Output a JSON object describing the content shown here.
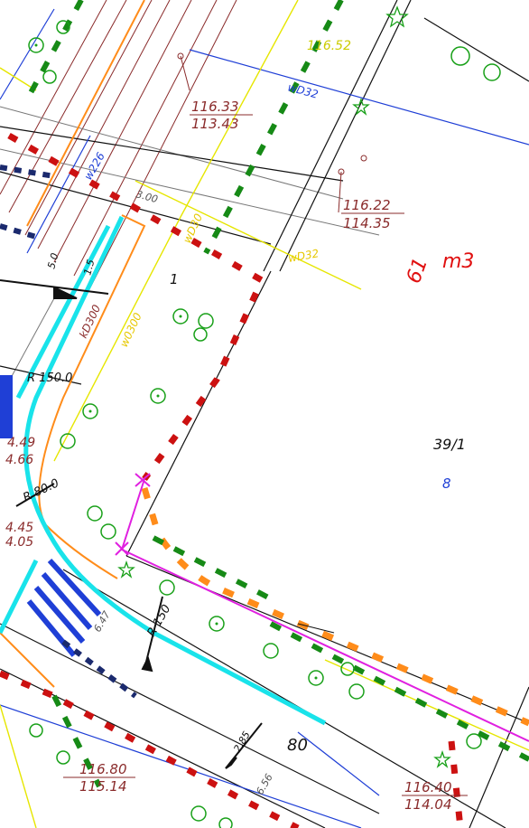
{
  "map": {
    "elevation_labels": [
      {
        "top": "116.33",
        "bottom": "113.43"
      },
      {
        "top": "116.22",
        "bottom": "114.35"
      },
      {
        "top": "116.80",
        "bottom": "115.14"
      },
      {
        "top": "116.40",
        "bottom": "114.04"
      }
    ],
    "parcel_labels": {
      "main": "39/1",
      "sub": "8",
      "small": "1"
    },
    "red_annotation": {
      "a": "61",
      "b": "m3"
    },
    "radius_labels": [
      "R 150.0",
      "R 80.0",
      "R 150"
    ],
    "utility_tags": [
      "wD32",
      "w226",
      "wD32",
      "wD30",
      "w0300",
      "kD300"
    ],
    "misc_labels": [
      "80",
      "3.00",
      "1.5",
      "5.0",
      "4.49",
      "4.66",
      "4.45",
      "4.05",
      "6.56",
      "6.47",
      "2.85"
    ],
    "top_cut_label": "116.52",
    "colors": {
      "red_line": "#cc1111",
      "green_line": "#168a16",
      "cyan_curb": "#19e3ea",
      "blue_line": "#1f3fd6",
      "yellow_line": "#e6e600",
      "orange_line": "#ff8c1a",
      "magenta_line": "#e020e0",
      "black_line": "#111111",
      "tree_green": "#18a018"
    }
  }
}
